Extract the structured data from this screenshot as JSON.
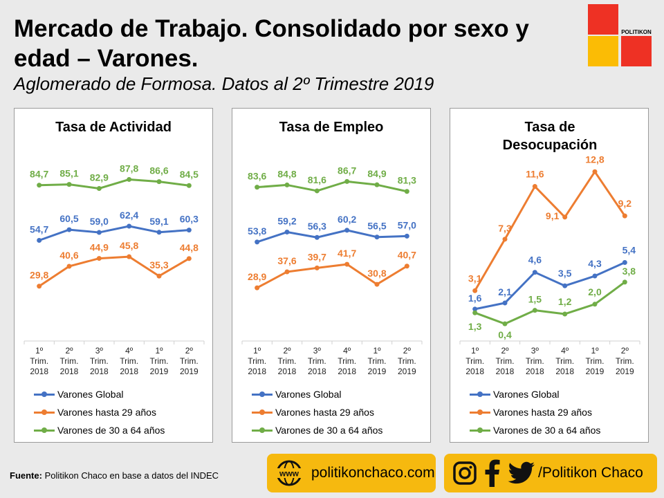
{
  "title": "Mercado de Trabajo. Consolidado por sexo y edad – Varones.",
  "subtitle": "Aglomerado de Formosa. Datos al 2º Trimestre 2019",
  "logo_text": "POLITIKON",
  "colors": {
    "global": "#4472c4",
    "hasta29": "#ed7d31",
    "de30a64": "#70ad47",
    "logo_red": "#ee3124",
    "logo_yellow": "#fbbc05",
    "pill": "#f6b90f"
  },
  "chart_data": [
    {
      "type": "line",
      "title": "Tasa de Actividad",
      "categories": [
        [
          "1º",
          "Trim.",
          "2018"
        ],
        [
          "2º",
          "Trim.",
          "2018"
        ],
        [
          "3º",
          "Trim.",
          "2018"
        ],
        [
          "4º",
          "Trim.",
          "2018"
        ],
        [
          "1º",
          "Trim.",
          "2019"
        ],
        [
          "2º",
          "Trim.",
          "2019"
        ]
      ],
      "series": [
        {
          "name": "Varones Global",
          "key": "global",
          "values": [
            54.7,
            60.5,
            59.0,
            62.4,
            59.1,
            60.3
          ],
          "labels": [
            "54,7",
            "60,5",
            "59,0",
            "62,4",
            "59,1",
            "60,3"
          ]
        },
        {
          "name": "Varones hasta 29 años",
          "key": "hasta29",
          "values": [
            29.8,
            40.6,
            44.9,
            45.8,
            35.3,
            44.8
          ],
          "labels": [
            "29,8",
            "40,6",
            "44,9",
            "45,8",
            "35,3",
            "44,8"
          ]
        },
        {
          "name": "Varones de 30 a 64 años",
          "key": "de30a64",
          "values": [
            84.7,
            85.1,
            82.9,
            87.8,
            86.6,
            84.5
          ],
          "labels": [
            "84,7",
            "85,1",
            "82,9",
            "87,8",
            "86,6",
            "84,5"
          ]
        }
      ],
      "ylim": [
        0,
        100
      ],
      "grid": false,
      "legend": "bottom"
    },
    {
      "type": "line",
      "title": "Tasa de Empleo",
      "categories": [
        [
          "1º",
          "Trim.",
          "2018"
        ],
        [
          "2º",
          "Trim.",
          "2018"
        ],
        [
          "3º",
          "Trim.",
          "2018"
        ],
        [
          "4º",
          "Trim.",
          "2018"
        ],
        [
          "1º",
          "Trim.",
          "2019"
        ],
        [
          "2º",
          "Trim.",
          "2019"
        ]
      ],
      "series": [
        {
          "name": "Varones Global",
          "key": "global",
          "values": [
            53.8,
            59.2,
            56.3,
            60.2,
            56.5,
            57.0
          ],
          "labels": [
            "53,8",
            "59,2",
            "56,3",
            "60,2",
            "56,5",
            "57,0"
          ]
        },
        {
          "name": "Varones hasta 29 años",
          "key": "hasta29",
          "values": [
            28.9,
            37.6,
            39.7,
            41.7,
            30.8,
            40.7
          ],
          "labels": [
            "28,9",
            "37,6",
            "39,7",
            "41,7",
            "30,8",
            "40,7"
          ]
        },
        {
          "name": "Varones de 30 a 64 años",
          "key": "de30a64",
          "values": [
            83.6,
            84.8,
            81.6,
            86.7,
            84.9,
            81.3
          ],
          "labels": [
            "83,6",
            "84,8",
            "81,6",
            "86,7",
            "84,9",
            "81,3"
          ]
        }
      ],
      "ylim": [
        0,
        100
      ],
      "grid": false,
      "legend": "bottom"
    },
    {
      "type": "line",
      "title": "Tasa de Desocupación",
      "categories": [
        [
          "1º",
          "Trim.",
          "2018"
        ],
        [
          "2º",
          "Trim.",
          "2018"
        ],
        [
          "3º",
          "Trim.",
          "2018"
        ],
        [
          "4º",
          "Trim.",
          "2018"
        ],
        [
          "1º",
          "Trim.",
          "2019"
        ],
        [
          "2º",
          "Trim.",
          "2019"
        ]
      ],
      "series": [
        {
          "name": "Varones Global",
          "key": "global",
          "values": [
            1.6,
            2.1,
            4.6,
            3.5,
            4.3,
            5.4
          ],
          "labels": [
            "1,6",
            "2,1",
            "4,6",
            "3,5",
            "4,3",
            "5,4"
          ]
        },
        {
          "name": "Varones hasta 29 años",
          "key": "hasta29",
          "values": [
            3.1,
            7.3,
            11.6,
            9.1,
            12.8,
            9.2
          ],
          "labels": [
            "3,1",
            "7,3",
            "11,6",
            "9,1",
            "12,8",
            "9,2"
          ]
        },
        {
          "name": "Varones de 30 a 64 años",
          "key": "de30a64",
          "values": [
            1.3,
            0.4,
            1.5,
            1.2,
            2.0,
            3.8
          ],
          "labels": [
            "1,3",
            "0,4",
            "1,5",
            "1,2",
            "2,0",
            "3,8"
          ]
        }
      ],
      "ylim": [
        -1,
        14
      ],
      "grid": false,
      "legend": "bottom"
    }
  ],
  "footer": {
    "source_label": "Fuente:",
    "source_text": " Politikon Chaco en base a datos del INDEC",
    "www_icon_text": "www",
    "website": "politikonchaco.com",
    "social": "/Politikon Chaco",
    "social_icons": [
      "instagram-icon",
      "facebook-icon",
      "twitter-icon"
    ]
  }
}
